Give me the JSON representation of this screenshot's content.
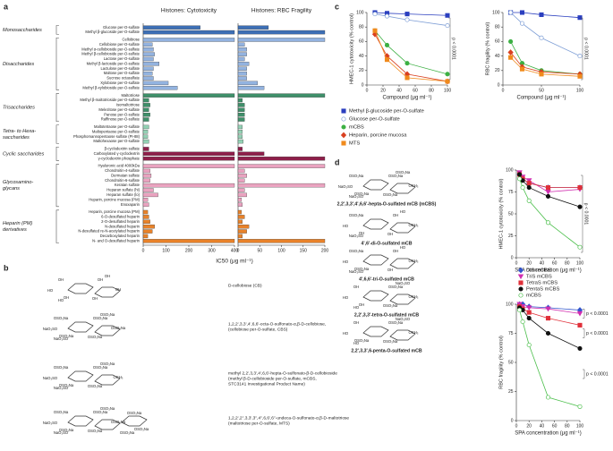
{
  "panel_labels": [
    "a",
    "b",
    "c",
    "d"
  ],
  "chart_data": [
    {
      "type": "hbar",
      "title": "Histones: Cytotoxicity",
      "xlabel": "IC50 (μg ml⁻¹)",
      "xlim": [
        0,
        400
      ],
      "xticks": [
        0,
        100,
        200,
        300,
        400
      ],
      "groups": [
        {
          "name": [
            "Monosaccharides"
          ],
          "color": "#3d6fb5",
          "categories": [
            "Glucose per-O-sulfate",
            "Methyl β-glucoside per-O-sulfate"
          ]
        },
        {
          "name": [
            "Disaccharides"
          ],
          "color": "#93b3e0",
          "categories": [
            "Cellobiose",
            "Cellobiose per-O-sulfate",
            "Methyl α-cellobioside per-O-sulfate",
            "Methyl β-cellobioside per-O-sulfate",
            "Lactose per-O-sulfate",
            "Methyl β-lactoside per-O-sulfate",
            "Lactulose per-O-sulfate",
            "Maltose per-O-sulfate",
            "Sucrose octasulfate",
            "Xylobiose per-O-sulfate",
            "Methyl β-xylobioside per-O-sulfate"
          ]
        },
        {
          "name": [
            "Trisaccharides"
          ],
          "color": "#3f8f6a",
          "categories": [
            "Maltotriose",
            "Methyl β-maltotrioside per-O-sulfate",
            "Isomaltotriose",
            "Melezitose per-O-sulfate",
            "Panose per-O-sulfate",
            "Raffinose per-O-sulfate"
          ]
        },
        {
          "name": [
            "Tetra- to Hexa-",
            "saccharides"
          ],
          "color": "#93d1b4",
          "categories": [
            "Maltotetraose per-O-sulfate",
            "Maltopentaose per-O-sulfate",
            "Phosphomannopentaose sulfate (PI-88)",
            "Maltohexaose per-O-sulfate"
          ]
        },
        {
          "name": [
            "Cyclic saccharides"
          ],
          "color": "#8e1f4a",
          "categories": [
            "β-cyclodextrin sulfate",
            "Carboxylated γ-cyclodextrin",
            "γ-cyclodextrin phosphate"
          ]
        },
        {
          "name": [
            "Glycosamino-",
            "glycans"
          ],
          "color": "#eaa3c0",
          "categories": [
            "Hyaluronic acid 4000kDa",
            "Chondroitin-4-sulfate",
            "Dermatan sulfate",
            "Chondroitin-6-sulfate",
            "Keratan sulfate",
            "Heparan sulfate (hi)",
            "Heparan sulfate (lo)",
            "Heparin, porcine mucosa (PM)",
            "Enoxaparin"
          ]
        },
        {
          "name": [
            "Heparin (PM)",
            "derivatives"
          ],
          "color": "#e8822a",
          "categories": [
            "Heparin, porcine mucosa (PM)",
            "6-O-desulfated heparin",
            "2-O-desulfated heparin",
            "N-desulfated heparin",
            "N-desulfated re-N-acetylated heparin",
            "Decarboxylated heparin",
            "N- and O-desulfated heparin"
          ]
        }
      ],
      "values": [
        250,
        400,
        400,
        40,
        45,
        50,
        45,
        70,
        45,
        40,
        45,
        110,
        150,
        400,
        25,
        30,
        25,
        30,
        25,
        25,
        20,
        20,
        25,
        25,
        400,
        400,
        400,
        30,
        35,
        30,
        400,
        45,
        65,
        20,
        25,
        20,
        25,
        30,
        50,
        40,
        20,
        400
      ]
    },
    {
      "type": "hbar",
      "title": "Histones: RBC Fragility",
      "xlim": [
        0,
        200
      ],
      "xticks": [
        0,
        50,
        100,
        150,
        200
      ],
      "values": [
        70,
        200,
        200,
        15,
        20,
        20,
        15,
        25,
        20,
        20,
        20,
        45,
        60,
        200,
        10,
        15,
        15,
        15,
        15,
        10,
        10,
        10,
        12,
        10,
        60,
        200,
        200,
        15,
        20,
        15,
        200,
        15,
        20,
        8,
        10,
        8,
        15,
        10,
        25,
        20,
        10,
        200
      ]
    },
    {
      "type": "line",
      "ylabel": "HMEC-1 cytotoxicity (% control)",
      "xlabel": "Compound (μg ml⁻¹)",
      "xlim": [
        0,
        100
      ],
      "xticks": [
        0,
        20,
        40,
        60,
        80,
        100
      ],
      "ylim": [
        0,
        100
      ],
      "yticks": [
        0,
        20,
        40,
        60,
        80,
        100
      ],
      "x": [
        10,
        25,
        50,
        100
      ],
      "series": [
        {
          "name": "Methyl β-glucoside per-O-sulfate",
          "color": "#2b3fbf",
          "marker": "square",
          "filled": true,
          "values": [
            100,
            99,
            98,
            96
          ]
        },
        {
          "name": "Glucose per-O-sulfate",
          "color": "#7f9fd6",
          "marker": "circle",
          "filled": false,
          "values": [
            98,
            95,
            90,
            82
          ]
        },
        {
          "name": "mCBS",
          "color": "#3cb043",
          "marker": "circle",
          "filled": true,
          "values": [
            75,
            55,
            30,
            15
          ]
        },
        {
          "name": "Heparin, porcine mucosa",
          "color": "#d94020",
          "marker": "diamond",
          "filled": true,
          "values": [
            70,
            40,
            15,
            5
          ]
        },
        {
          "name": "MTS",
          "color": "#f08a1c",
          "marker": "square",
          "filled": true,
          "values": [
            75,
            35,
            10,
            5
          ]
        }
      ],
      "annotations": [
        "p < 0.0001"
      ]
    },
    {
      "type": "line",
      "ylabel": "RBC fragility (% control)",
      "xlabel": "Compound (μg ml⁻¹)",
      "xlim": [
        0,
        100
      ],
      "xticks": [
        0,
        50,
        100
      ],
      "ylim": [
        0,
        100
      ],
      "yticks": [
        0,
        20,
        40,
        60,
        80,
        100
      ],
      "x": [
        10,
        25,
        50,
        100
      ],
      "series": [
        {
          "color": "#2b3fbf",
          "marker": "square",
          "filled": true,
          "values": [
            100,
            100,
            97,
            93
          ]
        },
        {
          "color": "#7f9fd6",
          "marker": "circle",
          "filled": false,
          "values": [
            100,
            85,
            65,
            40
          ]
        },
        {
          "color": "#3cb043",
          "marker": "circle",
          "filled": true,
          "values": [
            60,
            30,
            20,
            15
          ]
        },
        {
          "color": "#d94020",
          "marker": "diamond",
          "filled": true,
          "values": [
            45,
            25,
            18,
            15
          ]
        },
        {
          "color": "#f08a1c",
          "marker": "square",
          "filled": true,
          "values": [
            38,
            22,
            15,
            12
          ]
        }
      ],
      "annotations": [
        "p < 0.0001"
      ]
    },
    {
      "type": "line",
      "ylabel": "HMEC-1 cytotoxicity (% control)",
      "xlabel": "SPA concentration (μg ml⁻¹)",
      "xlim": [
        0,
        100
      ],
      "xticks": [
        0,
        20,
        40,
        60,
        80,
        100
      ],
      "ylim": [
        0,
        100
      ],
      "yticks": [
        0,
        25,
        50,
        75,
        100
      ],
      "x": [
        5,
        10,
        20,
        50,
        100
      ],
      "series": [
        {
          "name": "DiS mCBS",
          "color": "#3355cc",
          "marker": "diamond",
          "filled": true,
          "values": [
            95,
            90,
            85,
            80,
            80
          ]
        },
        {
          "name": "TriS mCBS",
          "color": "#d02fb0",
          "marker": "triangle",
          "filled": true,
          "values": [
            97,
            92,
            88,
            75,
            78
          ]
        },
        {
          "name": "TetraS mCBS",
          "color": "#e0303a",
          "marker": "square",
          "filled": true,
          "values": [
            95,
            90,
            85,
            80,
            80
          ]
        },
        {
          "name": "PentaS mCBS",
          "color": "#111111",
          "marker": "circle",
          "filled": true,
          "values": [
            95,
            88,
            80,
            70,
            58
          ]
        },
        {
          "name": "mCBS",
          "color": "#4cbf4c",
          "marker": "circle",
          "filled": false,
          "values": [
            90,
            80,
            65,
            40,
            12
          ]
        }
      ],
      "annotations": [
        "p < 0.0001"
      ]
    },
    {
      "type": "line",
      "ylabel": "RBC fragility (% control)",
      "xlabel": "SPA concentration (μg ml⁻¹)",
      "xlim": [
        0,
        100
      ],
      "xticks": [
        0,
        20,
        40,
        60,
        80,
        100
      ],
      "ylim": [
        0,
        100
      ],
      "yticks": [
        0,
        25,
        50,
        75,
        100
      ],
      "x": [
        5,
        10,
        20,
        50,
        100
      ],
      "series": [
        {
          "color": "#3355cc",
          "marker": "diamond",
          "filled": true,
          "values": [
            100,
            100,
            98,
            97,
            95
          ]
        },
        {
          "color": "#d02fb0",
          "marker": "triangle",
          "filled": true,
          "values": [
            100,
            98,
            97,
            96,
            92
          ]
        },
        {
          "color": "#e0303a",
          "marker": "square",
          "filled": true,
          "values": [
            98,
            96,
            93,
            88,
            82
          ]
        },
        {
          "color": "#111111",
          "marker": "circle",
          "filled": true,
          "values": [
            97,
            95,
            88,
            75,
            62
          ]
        },
        {
          "color": "#4cbf4c",
          "marker": "circle",
          "filled": false,
          "values": [
            95,
            85,
            65,
            20,
            12
          ]
        }
      ],
      "annotations": [
        "p < 0.0001",
        "p < 0.0001",
        "p < 0.0001"
      ]
    }
  ],
  "structures_b": [
    {
      "lines": [
        "D-cellobiose (CB)"
      ],
      "substituents": [
        "OH",
        "OH",
        "HO",
        "HO",
        "OH",
        "OH",
        "OH",
        "OH"
      ]
    },
    {
      "lines": [
        "1,2,2',3,3',4',6,6'-octa-O-sulfonato-α,β-D-cellobiose,",
        "(cellobiose per-O-sulfate, CBS)"
      ],
      "substituents": [
        "OSO₃Na",
        "OSO₃Na",
        "NaO₃SO",
        "NaO₃SO",
        "OSO₃Na",
        "OSO₃Na",
        "OSO₃Na",
        "OSO₃Na"
      ]
    },
    {
      "lines": [
        "methyl 2,2',3,3',4',6,6'-hepta-O-sulfonato-β-D-cellobioside",
        "(methyl β-D-cellobioside per-O-sulfate, mCBS,",
        "STC3141 Investigational Product Name)"
      ],
      "substituents": [
        "OSO₃Na",
        "OSO₃Na",
        "NaO₃SO",
        "NaO₃SO",
        "OSO₃Na",
        "OCH₃",
        "OSO₃Na",
        "OSO₃Na"
      ]
    },
    {
      "lines": [
        "1,2,2',2'',3,3',3'',4'',6,6',6''-undeca-O-sulfonato-α,β-D-maltotriose",
        "(maltotriose per-O-sulfate, MTS)"
      ],
      "substituents": [
        "OSO₃Na",
        "OSO₃Na",
        "NaO₃SO",
        "NaO₃SO",
        "OSO₃Na",
        "OSO₃Na",
        "OSO₃Na",
        "OSO₃Na",
        "OSO₃Na",
        "OSO₃Na",
        "OSO₃Na"
      ]
    }
  ],
  "structures_d": [
    {
      "label": "2,2',3,3',4',6,6'-hepta-O-sulfated mCB (mCBS)",
      "substituents": [
        "OSO₃Na",
        "OSO₃Na",
        "NaO₃SO",
        "NaO₃SO",
        "OSO₃Na",
        "OCH₃",
        "OSO₃Na",
        "OSO₃Na"
      ]
    },
    {
      "label": "4',6'-di-O-sulfated mCB",
      "substituents": [
        "OSO₃Na",
        "OH",
        "HO",
        "NaO₃SO",
        "OH",
        "OCH₃",
        "OH",
        "HO"
      ]
    },
    {
      "label": "4',6,6'-tri-O-sulfated mCB",
      "substituents": [
        "OSO₃Na",
        "OSO₃Na",
        "HO",
        "NaO₃SO",
        "OH",
        "OCH₃",
        "OH",
        "HO"
      ]
    },
    {
      "label": "2,2',3,3'-tetra-O-sulfated mCB",
      "substituents": [
        "OH",
        "OH",
        "HO",
        "HO",
        "OSO₃Na",
        "OCH₃",
        "OSO₃Na",
        "NaO₃SO"
      ]
    },
    {
      "label": "2,2',3,3',6-penta-O-sulfated mCB",
      "substituents": [
        "OH",
        "OSO₃Na",
        "HO",
        "HO",
        "OSO₃Na",
        "OCH₃",
        "OSO₃Na",
        "NaO₃SO"
      ]
    }
  ]
}
